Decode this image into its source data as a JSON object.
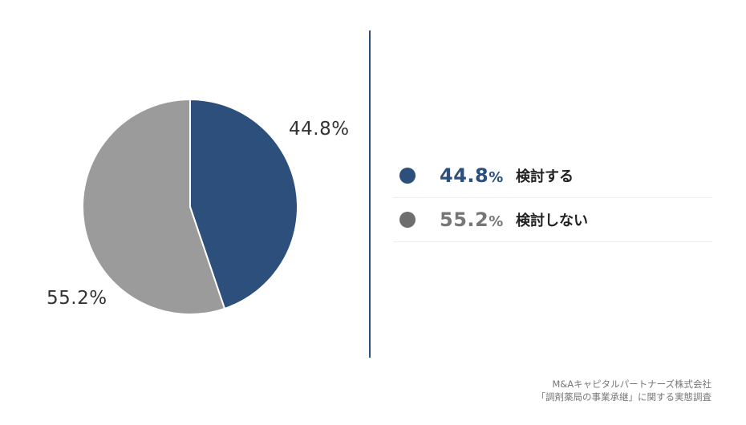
{
  "chart_data": {
    "type": "pie",
    "slices": [
      {
        "label": "検討する",
        "value": 44.8,
        "display": "44.8",
        "color": "#2c4f7b"
      },
      {
        "label": "検討しない",
        "value": 55.2,
        "display": "55.2",
        "color": "#9b9b9b"
      }
    ],
    "unit": "%",
    "legend_placement": "right"
  },
  "legend": {
    "dot_colors": [
      "#2c4f7b",
      "#6e6e6e"
    ],
    "value_colors": [
      "#2c4f7b",
      "#777777"
    ]
  },
  "slice_labels": [
    "44.8%",
    "55.2%"
  ],
  "source": {
    "line1": "M&Aキャピタルパートナーズ株式会社",
    "line2": "「調剤薬局の事業承継」に関する実態調査"
  }
}
